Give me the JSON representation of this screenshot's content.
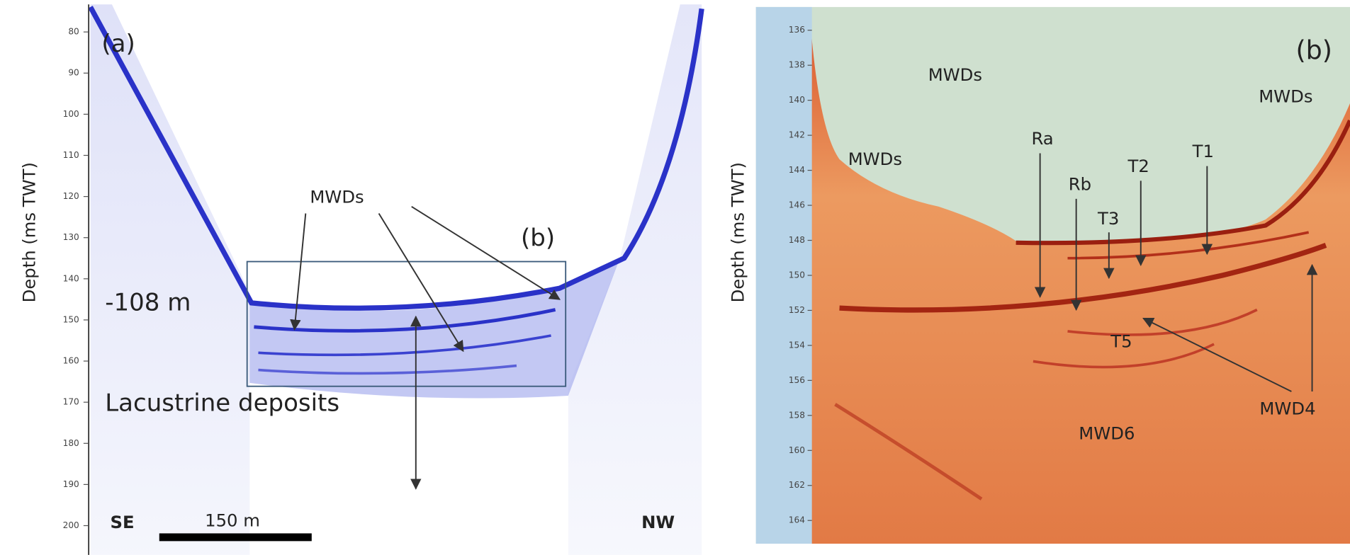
{
  "panel_a": {
    "label": "(a)",
    "y_axis_label": "Depth (ms TWT)",
    "yticks": [
      80,
      90,
      100,
      110,
      120,
      130,
      140,
      150,
      160,
      170,
      180,
      190,
      200
    ],
    "annotations": {
      "mwds": "MWDs",
      "box_label": "(b)",
      "depth": "-108 m",
      "lacustrine": "Lacustrine deposits",
      "se": "SE",
      "nw": "NW",
      "scale": "150 m"
    }
  },
  "panel_b": {
    "label": "(b)",
    "y_axis_label": "Depth (ms TWT)",
    "yticks": [
      136,
      138,
      140,
      142,
      144,
      146,
      148,
      150,
      152,
      154,
      156,
      158,
      160,
      162,
      164
    ],
    "annotations": {
      "mwds_top": "MWDs",
      "mwds_right": "MWDs",
      "mwds_left": "MWDs",
      "ra": "Ra",
      "rb": "Rb",
      "t3": "T3",
      "t2": "T2",
      "t1": "T1",
      "t5": "T5",
      "mwd4": "MWD4",
      "mwd6": "MWD6"
    }
  }
}
